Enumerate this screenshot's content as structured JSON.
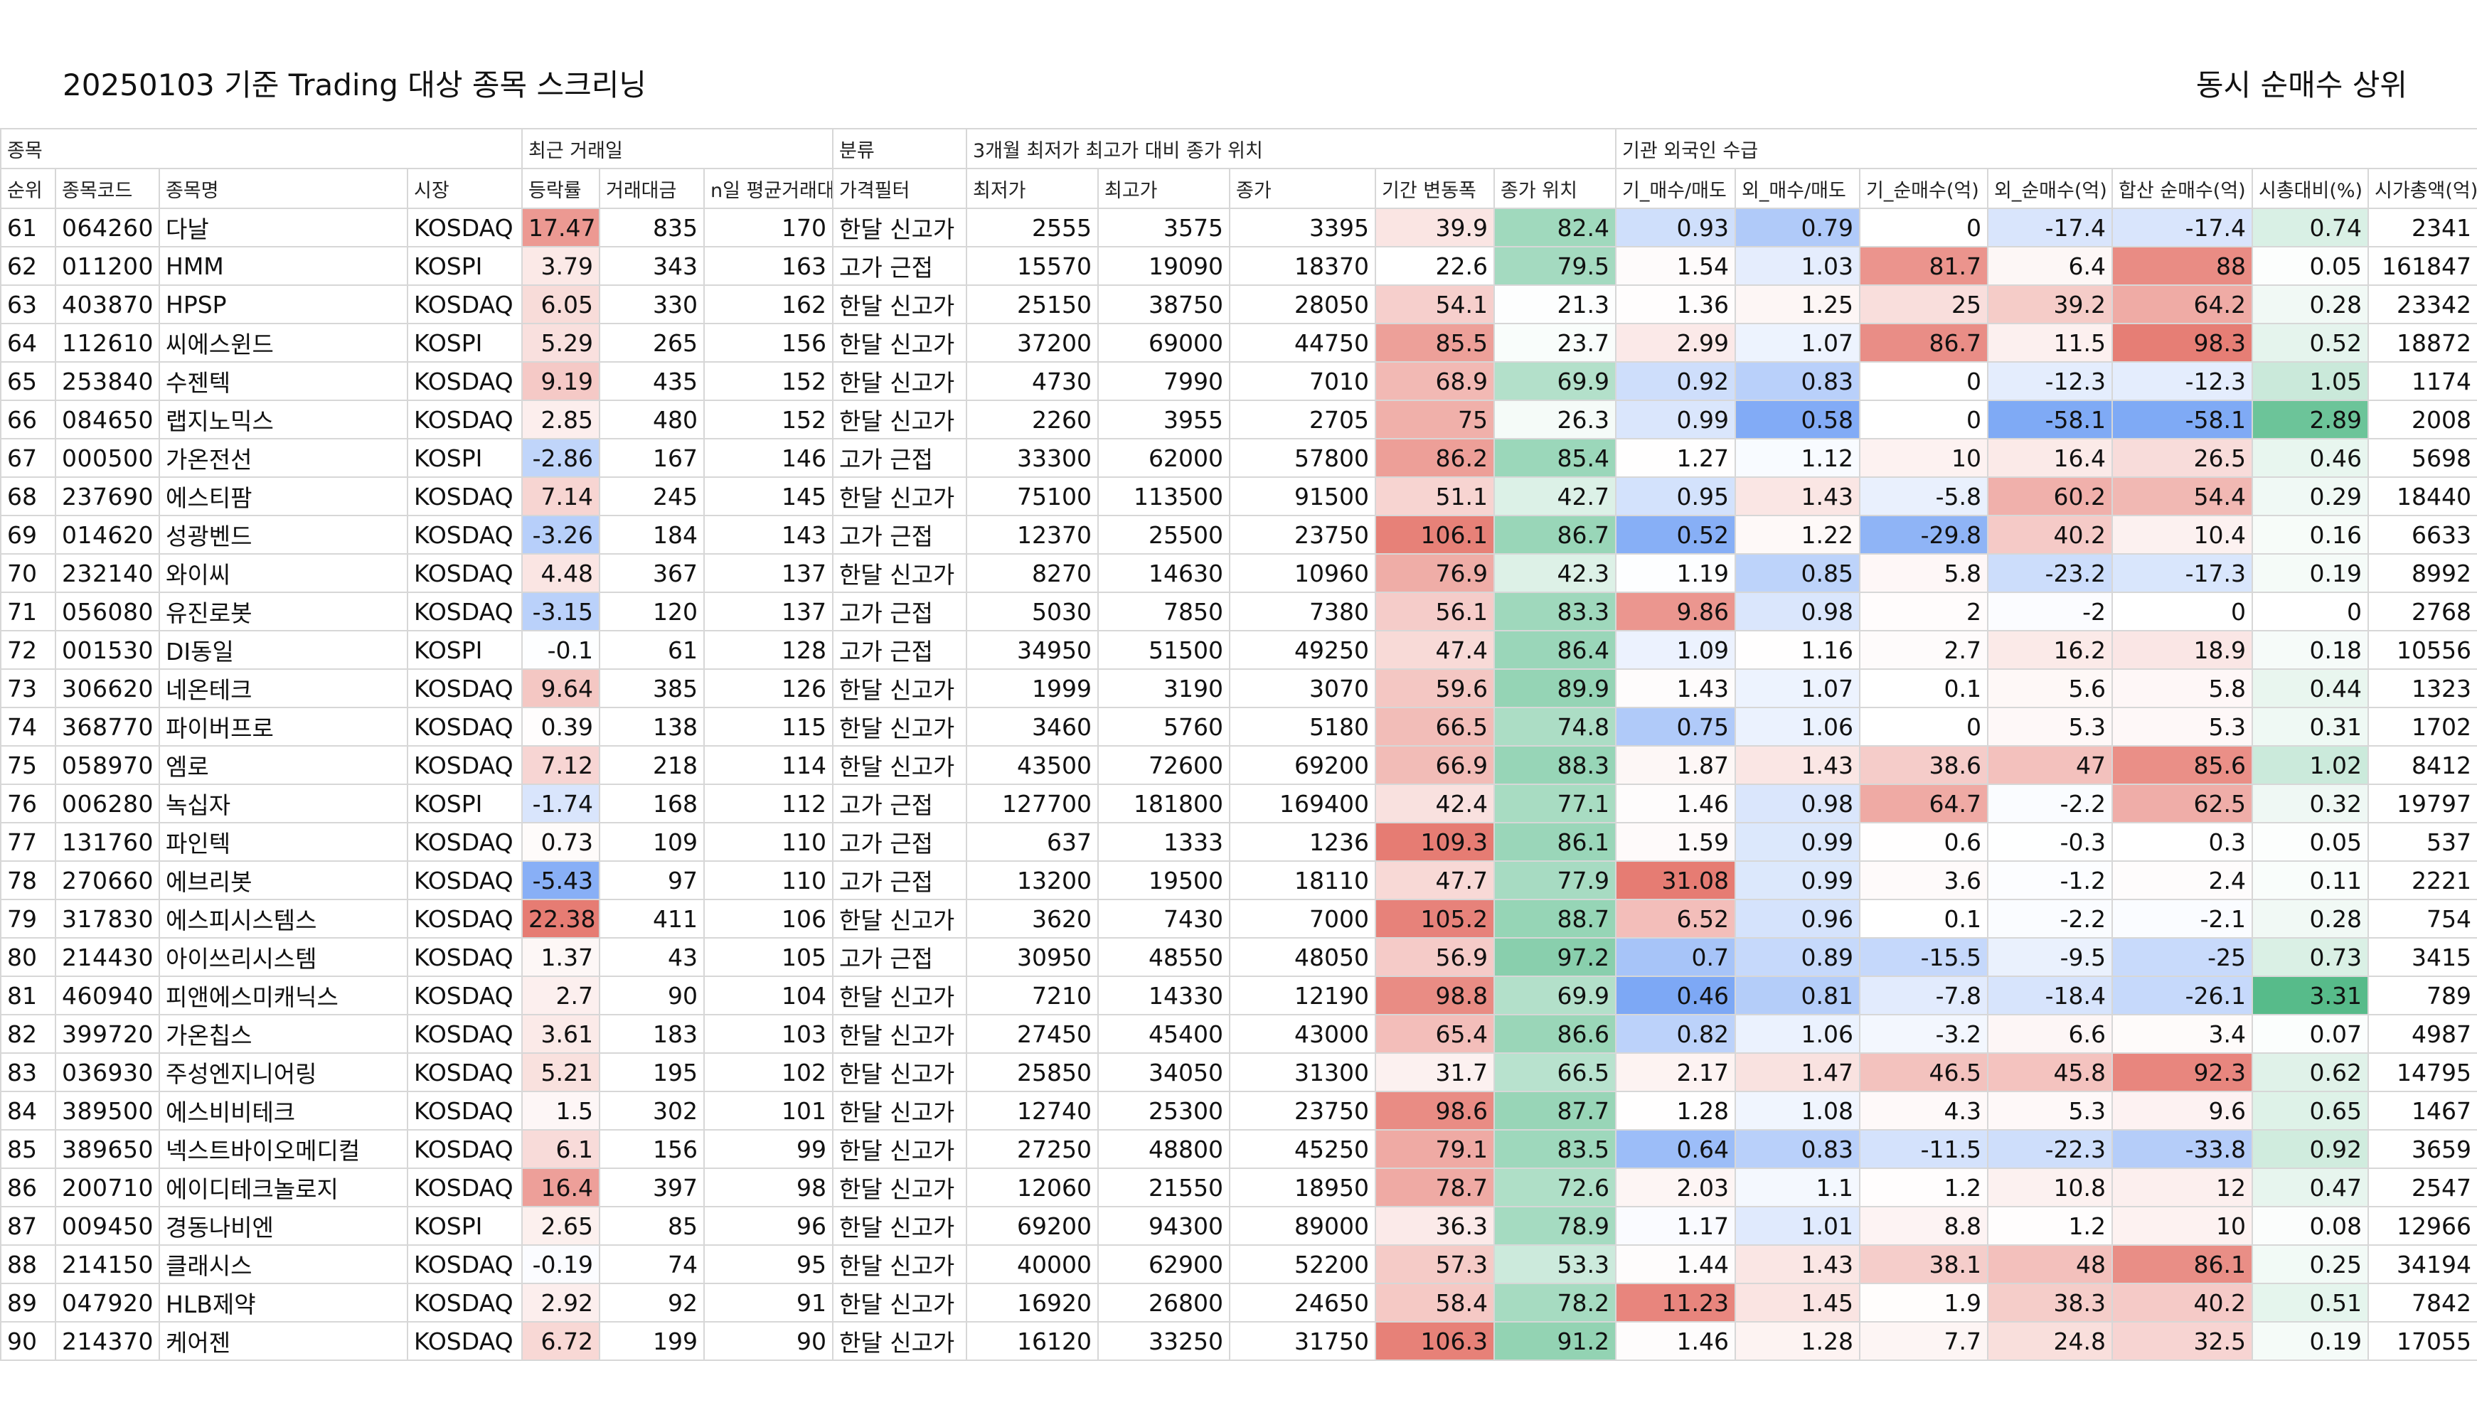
{
  "title": "20250103 기준 Trading 대상 종목 스크리닝",
  "subtitle": "동시 순매수 상위",
  "groups": [
    {
      "label": "종목",
      "span": 4
    },
    {
      "label": "최근 거래일",
      "span": 3
    },
    {
      "label": "분류",
      "span": 1
    },
    {
      "label": "3개월 최저가 최고가 대비 종가 위치",
      "span": 5
    },
    {
      "label": "기관 외국인 수급",
      "span": 7
    }
  ],
  "columns": [
    "순위",
    "종목코드",
    "종목명",
    "시장",
    "등락률",
    "거래대금",
    "n일 평균거래대금",
    "가격필터",
    "최저가",
    "최고가",
    "종가",
    "기간 변동폭",
    "종가 위치",
    "기_매수/매도",
    "외_매수/매도",
    "기_순매수(억)",
    "외_순매수(억)",
    "합산 순매수(억)",
    "시총대비(%)",
    "시가총액(억)"
  ],
  "rows": [
    [
      "61",
      "064260",
      "다날",
      "KOSDAQ",
      "17.47",
      "835",
      "170",
      "한달 신고가",
      "2555",
      "3575",
      "3395",
      "39.9",
      "82.4",
      "0.93",
      "0.79",
      "0",
      "-17.4",
      "-17.4",
      "0.74",
      "2341"
    ],
    [
      "62",
      "011200",
      "HMM",
      "KOSPI",
      "3.79",
      "343",
      "163",
      "고가 근접",
      "15570",
      "19090",
      "18370",
      "22.6",
      "79.5",
      "1.54",
      "1.03",
      "81.7",
      "6.4",
      "88",
      "0.05",
      "161847"
    ],
    [
      "63",
      "403870",
      "HPSP",
      "KOSDAQ",
      "6.05",
      "330",
      "162",
      "한달 신고가",
      "25150",
      "38750",
      "28050",
      "54.1",
      "21.3",
      "1.36",
      "1.25",
      "25",
      "39.2",
      "64.2",
      "0.28",
      "23342"
    ],
    [
      "64",
      "112610",
      "씨에스윈드",
      "KOSPI",
      "5.29",
      "265",
      "156",
      "한달 신고가",
      "37200",
      "69000",
      "44750",
      "85.5",
      "23.7",
      "2.99",
      "1.07",
      "86.7",
      "11.5",
      "98.3",
      "0.52",
      "18872"
    ],
    [
      "65",
      "253840",
      "수젠텍",
      "KOSDAQ",
      "9.19",
      "435",
      "152",
      "한달 신고가",
      "4730",
      "7990",
      "7010",
      "68.9",
      "69.9",
      "0.92",
      "0.83",
      "0",
      "-12.3",
      "-12.3",
      "1.05",
      "1174"
    ],
    [
      "66",
      "084650",
      "랩지노믹스",
      "KOSDAQ",
      "2.85",
      "480",
      "152",
      "한달 신고가",
      "2260",
      "3955",
      "2705",
      "75",
      "26.3",
      "0.99",
      "0.58",
      "0",
      "-58.1",
      "-58.1",
      "2.89",
      "2008"
    ],
    [
      "67",
      "000500",
      "가온전선",
      "KOSPI",
      "-2.86",
      "167",
      "146",
      "고가 근접",
      "33300",
      "62000",
      "57800",
      "86.2",
      "85.4",
      "1.27",
      "1.12",
      "10",
      "16.4",
      "26.5",
      "0.46",
      "5698"
    ],
    [
      "68",
      "237690",
      "에스티팜",
      "KOSDAQ",
      "7.14",
      "245",
      "145",
      "한달 신고가",
      "75100",
      "113500",
      "91500",
      "51.1",
      "42.7",
      "0.95",
      "1.43",
      "-5.8",
      "60.2",
      "54.4",
      "0.29",
      "18440"
    ],
    [
      "69",
      "014620",
      "성광벤드",
      "KOSDAQ",
      "-3.26",
      "184",
      "143",
      "고가 근접",
      "12370",
      "25500",
      "23750",
      "106.1",
      "86.7",
      "0.52",
      "1.22",
      "-29.8",
      "40.2",
      "10.4",
      "0.16",
      "6633"
    ],
    [
      "70",
      "232140",
      "와이씨",
      "KOSDAQ",
      "4.48",
      "367",
      "137",
      "한달 신고가",
      "8270",
      "14630",
      "10960",
      "76.9",
      "42.3",
      "1.19",
      "0.85",
      "5.8",
      "-23.2",
      "-17.3",
      "0.19",
      "8992"
    ],
    [
      "71",
      "056080",
      "유진로봇",
      "KOSDAQ",
      "-3.15",
      "120",
      "137",
      "고가 근접",
      "5030",
      "7850",
      "7380",
      "56.1",
      "83.3",
      "9.86",
      "0.98",
      "2",
      "-2",
      "0",
      "0",
      "2768"
    ],
    [
      "72",
      "001530",
      "DI동일",
      "KOSPI",
      "-0.1",
      "61",
      "128",
      "고가 근접",
      "34950",
      "51500",
      "49250",
      "47.4",
      "86.4",
      "1.09",
      "1.16",
      "2.7",
      "16.2",
      "18.9",
      "0.18",
      "10556"
    ],
    [
      "73",
      "306620",
      "네온테크",
      "KOSDAQ",
      "9.64",
      "385",
      "126",
      "한달 신고가",
      "1999",
      "3190",
      "3070",
      "59.6",
      "89.9",
      "1.43",
      "1.07",
      "0.1",
      "5.6",
      "5.8",
      "0.44",
      "1323"
    ],
    [
      "74",
      "368770",
      "파이버프로",
      "KOSDAQ",
      "0.39",
      "138",
      "115",
      "한달 신고가",
      "3460",
      "5760",
      "5180",
      "66.5",
      "74.8",
      "0.75",
      "1.06",
      "0",
      "5.3",
      "5.3",
      "0.31",
      "1702"
    ],
    [
      "75",
      "058970",
      "엠로",
      "KOSDAQ",
      "7.12",
      "218",
      "114",
      "한달 신고가",
      "43500",
      "72600",
      "69200",
      "66.9",
      "88.3",
      "1.87",
      "1.43",
      "38.6",
      "47",
      "85.6",
      "1.02",
      "8412"
    ],
    [
      "76",
      "006280",
      "녹십자",
      "KOSPI",
      "-1.74",
      "168",
      "112",
      "고가 근접",
      "127700",
      "181800",
      "169400",
      "42.4",
      "77.1",
      "1.46",
      "0.98",
      "64.7",
      "-2.2",
      "62.5",
      "0.32",
      "19797"
    ],
    [
      "77",
      "131760",
      "파인텍",
      "KOSDAQ",
      "0.73",
      "109",
      "110",
      "고가 근접",
      "637",
      "1333",
      "1236",
      "109.3",
      "86.1",
      "1.59",
      "0.99",
      "0.6",
      "-0.3",
      "0.3",
      "0.05",
      "537"
    ],
    [
      "78",
      "270660",
      "에브리봇",
      "KOSDAQ",
      "-5.43",
      "97",
      "110",
      "고가 근접",
      "13200",
      "19500",
      "18110",
      "47.7",
      "77.9",
      "31.08",
      "0.99",
      "3.6",
      "-1.2",
      "2.4",
      "0.11",
      "2221"
    ],
    [
      "79",
      "317830",
      "에스피시스템스",
      "KOSDAQ",
      "22.38",
      "411",
      "106",
      "한달 신고가",
      "3620",
      "7430",
      "7000",
      "105.2",
      "88.7",
      "6.52",
      "0.96",
      "0.1",
      "-2.2",
      "-2.1",
      "0.28",
      "754"
    ],
    [
      "80",
      "214430",
      "아이쓰리시스템",
      "KOSDAQ",
      "1.37",
      "43",
      "105",
      "고가 근접",
      "30950",
      "48550",
      "48050",
      "56.9",
      "97.2",
      "0.7",
      "0.89",
      "-15.5",
      "-9.5",
      "-25",
      "0.73",
      "3415"
    ],
    [
      "81",
      "460940",
      "피앤에스미캐닉스",
      "KOSDAQ",
      "2.7",
      "90",
      "104",
      "한달 신고가",
      "7210",
      "14330",
      "12190",
      "98.8",
      "69.9",
      "0.46",
      "0.81",
      "-7.8",
      "-18.4",
      "-26.1",
      "3.31",
      "789"
    ],
    [
      "82",
      "399720",
      "가온칩스",
      "KOSDAQ",
      "3.61",
      "183",
      "103",
      "한달 신고가",
      "27450",
      "45400",
      "43000",
      "65.4",
      "86.6",
      "0.82",
      "1.06",
      "-3.2",
      "6.6",
      "3.4",
      "0.07",
      "4987"
    ],
    [
      "83",
      "036930",
      "주성엔지니어링",
      "KOSDAQ",
      "5.21",
      "195",
      "102",
      "한달 신고가",
      "25850",
      "34050",
      "31300",
      "31.7",
      "66.5",
      "2.17",
      "1.47",
      "46.5",
      "45.8",
      "92.3",
      "0.62",
      "14795"
    ],
    [
      "84",
      "389500",
      "에스비비테크",
      "KOSDAQ",
      "1.5",
      "302",
      "101",
      "한달 신고가",
      "12740",
      "25300",
      "23750",
      "98.6",
      "87.7",
      "1.28",
      "1.08",
      "4.3",
      "5.3",
      "9.6",
      "0.65",
      "1467"
    ],
    [
      "85",
      "389650",
      "넥스트바이오메디컬",
      "KOSDAQ",
      "6.1",
      "156",
      "99",
      "한달 신고가",
      "27250",
      "48800",
      "45250",
      "79.1",
      "83.5",
      "0.64",
      "0.83",
      "-11.5",
      "-22.3",
      "-33.8",
      "0.92",
      "3659"
    ],
    [
      "86",
      "200710",
      "에이디테크놀로지",
      "KOSDAQ",
      "16.4",
      "397",
      "98",
      "한달 신고가",
      "12060",
      "21550",
      "18950",
      "78.7",
      "72.6",
      "2.03",
      "1.1",
      "1.2",
      "10.8",
      "12",
      "0.47",
      "2547"
    ],
    [
      "87",
      "009450",
      "경동나비엔",
      "KOSPI",
      "2.65",
      "85",
      "96",
      "한달 신고가",
      "69200",
      "94300",
      "89000",
      "36.3",
      "78.9",
      "1.17",
      "1.01",
      "8.8",
      "1.2",
      "10",
      "0.08",
      "12966"
    ],
    [
      "88",
      "214150",
      "클래시스",
      "KOSDAQ",
      "-0.19",
      "74",
      "95",
      "한달 신고가",
      "40000",
      "62900",
      "52200",
      "57.3",
      "53.3",
      "1.44",
      "1.43",
      "38.1",
      "48",
      "86.1",
      "0.25",
      "34194"
    ],
    [
      "89",
      "047920",
      "HLB제약",
      "KOSDAQ",
      "2.92",
      "92",
      "91",
      "한달 신고가",
      "16920",
      "26800",
      "24650",
      "58.4",
      "78.2",
      "11.23",
      "1.45",
      "1.9",
      "38.3",
      "40.2",
      "0.51",
      "7842"
    ],
    [
      "90",
      "214370",
      "케어젠",
      "KOSDAQ",
      "6.72",
      "199",
      "90",
      "한달 신고가",
      "16120",
      "33250",
      "31750",
      "106.3",
      "91.2",
      "1.46",
      "1.28",
      "7.7",
      "24.8",
      "32.5",
      "0.19",
      "17055"
    ]
  ],
  "colors": {
    "red": "#e67c73",
    "blue": "#7ba7f5",
    "green": "#57bb8a",
    "white": "#ffffff",
    "grid": "#d7d7d7"
  }
}
